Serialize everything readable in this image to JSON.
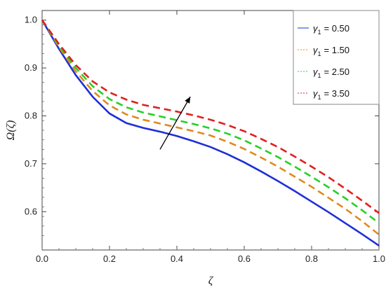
{
  "chart_data": {
    "type": "line",
    "xlabel": "ζ",
    "ylabel": "Ω(ζ)",
    "xlim": [
      0.0,
      1.0
    ],
    "ylim": [
      0.52,
      1.02
    ],
    "xticks": [
      "0.0",
      "0.2",
      "0.4",
      "0.6",
      "0.8",
      "1.0"
    ],
    "yticks": [
      "0.6",
      "0.7",
      "0.8",
      "0.9",
      "1.0"
    ],
    "legend_position": "top-right",
    "annotation_arrow": {
      "from": [
        0.35,
        0.73
      ],
      "to": [
        0.44,
        0.84
      ],
      "meaning": "increasing γ1"
    },
    "series": [
      {
        "name": "γ1 = 0.50",
        "label_sym": "γ",
        "label_sub": "1",
        "label_val": "= 0.50",
        "color": "#1f2fd6",
        "dash": "solid",
        "x": [
          0.0,
          0.05,
          0.1,
          0.15,
          0.2,
          0.25,
          0.3,
          0.35,
          0.4,
          0.45,
          0.5,
          0.55,
          0.6,
          0.65,
          0.7,
          0.75,
          0.8,
          0.85,
          0.9,
          0.95,
          1.0
        ],
        "y": [
          1.0,
          0.94,
          0.885,
          0.84,
          0.805,
          0.785,
          0.775,
          0.767,
          0.758,
          0.747,
          0.735,
          0.72,
          0.703,
          0.684,
          0.664,
          0.643,
          0.621,
          0.599,
          0.576,
          0.553,
          0.529
        ]
      },
      {
        "name": "γ1 = 1.50",
        "label_sym": "γ",
        "label_sub": "1",
        "label_val": "= 1.50",
        "color": "#e08a1e",
        "dash": "dashed",
        "x": [
          0.0,
          0.05,
          0.1,
          0.15,
          0.2,
          0.25,
          0.3,
          0.35,
          0.4,
          0.45,
          0.5,
          0.55,
          0.6,
          0.65,
          0.7,
          0.75,
          0.8,
          0.85,
          0.9,
          0.95,
          1.0
        ],
        "y": [
          1.0,
          0.944,
          0.893,
          0.852,
          0.822,
          0.803,
          0.792,
          0.784,
          0.776,
          0.768,
          0.759,
          0.746,
          0.731,
          0.713,
          0.694,
          0.673,
          0.652,
          0.629,
          0.606,
          0.58,
          0.552
        ]
      },
      {
        "name": "γ1 = 2.50",
        "label_sym": "γ",
        "label_sub": "1",
        "label_val": "= 2.50",
        "color": "#27d027",
        "dash": "dashed",
        "x": [
          0.0,
          0.05,
          0.1,
          0.15,
          0.2,
          0.25,
          0.3,
          0.35,
          0.4,
          0.45,
          0.5,
          0.55,
          0.6,
          0.65,
          0.7,
          0.75,
          0.8,
          0.85,
          0.9,
          0.95,
          1.0
        ],
        "y": [
          1.0,
          0.947,
          0.9,
          0.862,
          0.835,
          0.818,
          0.807,
          0.799,
          0.791,
          0.783,
          0.774,
          0.763,
          0.749,
          0.732,
          0.714,
          0.694,
          0.673,
          0.651,
          0.628,
          0.603,
          0.576
        ]
      },
      {
        "name": "γ1 = 3.50",
        "label_sym": "γ",
        "label_sub": "1",
        "label_val": "= 3.50",
        "color": "#e02020",
        "dash": "dashed",
        "x": [
          0.0,
          0.05,
          0.1,
          0.15,
          0.2,
          0.25,
          0.3,
          0.35,
          0.4,
          0.45,
          0.5,
          0.55,
          0.6,
          0.65,
          0.7,
          0.75,
          0.8,
          0.85,
          0.9,
          0.95,
          1.0
        ],
        "y": [
          1.0,
          0.95,
          0.906,
          0.872,
          0.849,
          0.834,
          0.823,
          0.816,
          0.809,
          0.801,
          0.792,
          0.781,
          0.768,
          0.752,
          0.735,
          0.715,
          0.694,
          0.672,
          0.648,
          0.623,
          0.597
        ]
      }
    ]
  }
}
